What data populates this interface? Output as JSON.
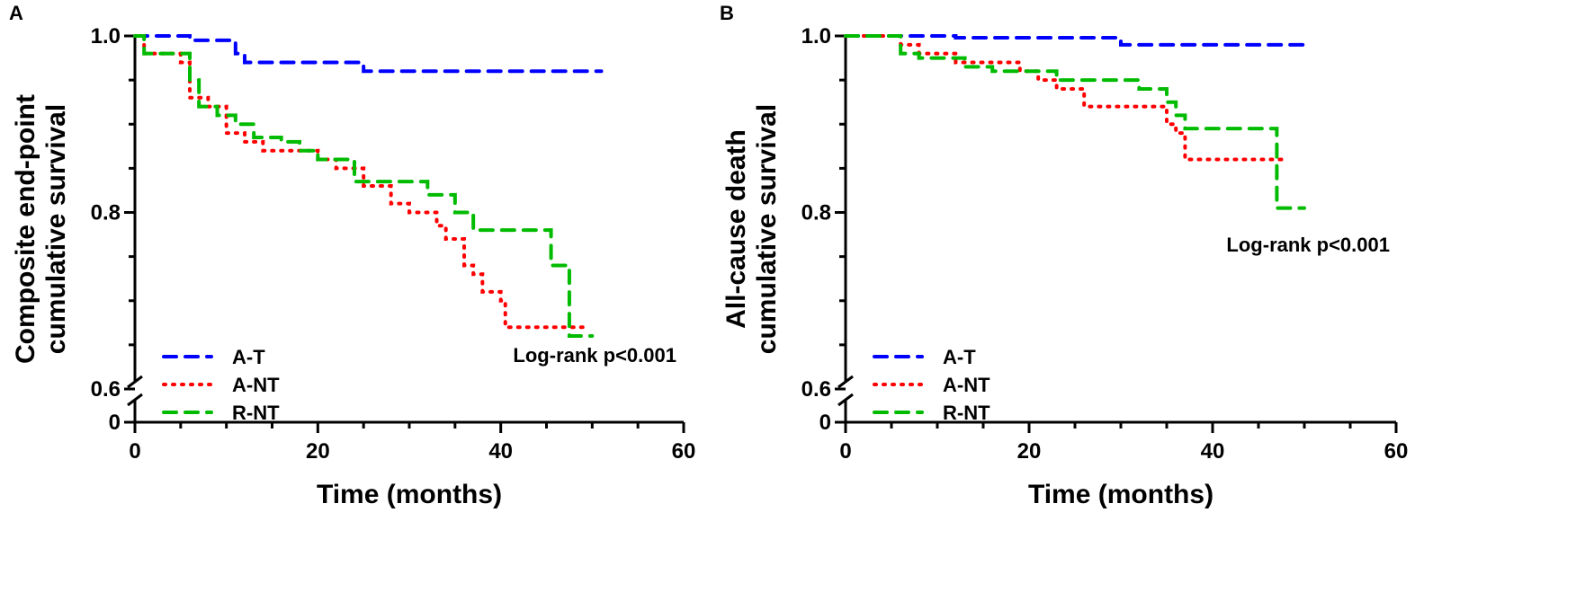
{
  "chart_data": [
    {
      "type": "line",
      "panel": "A",
      "title": "",
      "xlabel": "Time (months)",
      "ylabel": [
        "Composite end-point",
        "cumulative survival"
      ],
      "xlim": [
        0,
        60
      ],
      "xticks": [
        "0",
        "20",
        "40",
        "60"
      ],
      "ylim": [
        0.6,
        1.0
      ],
      "yticks": [
        "0.6",
        "0.8",
        "1.0"
      ],
      "ybreak_tick": "0",
      "annotation": "Log-rank p<0.001",
      "legend_position": "bottom-left",
      "series": [
        {
          "name": "A-T",
          "color": "#0000ff",
          "style": "dashed",
          "points": [
            [
              0,
              1
            ],
            [
              6,
              0.995
            ],
            [
              11,
              0.98
            ],
            [
              12,
              0.97
            ],
            [
              25,
              0.96
            ],
            [
              51,
              0.96
            ]
          ]
        },
        {
          "name": "A-NT",
          "color": "#ff0000",
          "style": "dotted",
          "points": [
            [
              0,
              1
            ],
            [
              1,
              0.98
            ],
            [
              5,
              0.97
            ],
            [
              6,
              0.93
            ],
            [
              8,
              0.92
            ],
            [
              10,
              0.89
            ],
            [
              12,
              0.88
            ],
            [
              14,
              0.87
            ],
            [
              20,
              0.86
            ],
            [
              22,
              0.85
            ],
            [
              25,
              0.83
            ],
            [
              28,
              0.81
            ],
            [
              30,
              0.8
            ],
            [
              33,
              0.785
            ],
            [
              34,
              0.77
            ],
            [
              36,
              0.74
            ],
            [
              37,
              0.73
            ],
            [
              38,
              0.71
            ],
            [
              40,
              0.7
            ],
            [
              40.5,
              0.67
            ],
            [
              49,
              0.67
            ]
          ]
        },
        {
          "name": "R-NT",
          "color": "#00bb00",
          "style": "dashed",
          "points": [
            [
              0,
              1
            ],
            [
              1,
              0.98
            ],
            [
              6,
              0.95
            ],
            [
              7,
              0.92
            ],
            [
              9,
              0.91
            ],
            [
              11,
              0.9
            ],
            [
              13,
              0.885
            ],
            [
              16,
              0.88
            ],
            [
              18,
              0.87
            ],
            [
              20,
              0.86
            ],
            [
              24,
              0.835
            ],
            [
              32,
              0.82
            ],
            [
              35,
              0.8
            ],
            [
              37,
              0.78
            ],
            [
              45.5,
              0.74
            ],
            [
              47.5,
              0.66
            ],
            [
              50,
              0.66
            ]
          ]
        }
      ]
    },
    {
      "type": "line",
      "panel": "B",
      "title": "",
      "xlabel": "Time (months)",
      "ylabel": [
        "All-cause death",
        "cumulative survival"
      ],
      "xlim": [
        0,
        60
      ],
      "xticks": [
        "0",
        "20",
        "40",
        "60"
      ],
      "ylim": [
        0.6,
        1.0
      ],
      "yticks": [
        "0.6",
        "0.8",
        "1.0"
      ],
      "ybreak_tick": "0",
      "annotation": "Log-rank p<0.001",
      "legend_position": "bottom-left",
      "series": [
        {
          "name": "A-T",
          "color": "#0000ff",
          "style": "dashed",
          "points": [
            [
              0,
              1
            ],
            [
              12,
              0.998
            ],
            [
              30,
              0.99
            ],
            [
              50,
              0.99
            ]
          ]
        },
        {
          "name": "A-NT",
          "color": "#ff0000",
          "style": "dotted",
          "points": [
            [
              0,
              1
            ],
            [
              6,
              0.99
            ],
            [
              8,
              0.98
            ],
            [
              12,
              0.97
            ],
            [
              19,
              0.96
            ],
            [
              21,
              0.95
            ],
            [
              23,
              0.94
            ],
            [
              26,
              0.92
            ],
            [
              35,
              0.9
            ],
            [
              36,
              0.89
            ],
            [
              37,
              0.86
            ],
            [
              48,
              0.86
            ]
          ]
        },
        {
          "name": "R-NT",
          "color": "#00bb00",
          "style": "dashed",
          "points": [
            [
              0,
              1
            ],
            [
              6,
              0.98
            ],
            [
              8,
              0.975
            ],
            [
              13,
              0.965
            ],
            [
              16,
              0.96
            ],
            [
              23,
              0.95
            ],
            [
              32,
              0.94
            ],
            [
              35,
              0.925
            ],
            [
              36,
              0.91
            ],
            [
              37,
              0.895
            ],
            [
              47,
              0.805
            ],
            [
              50,
              0.805
            ]
          ]
        }
      ]
    }
  ]
}
